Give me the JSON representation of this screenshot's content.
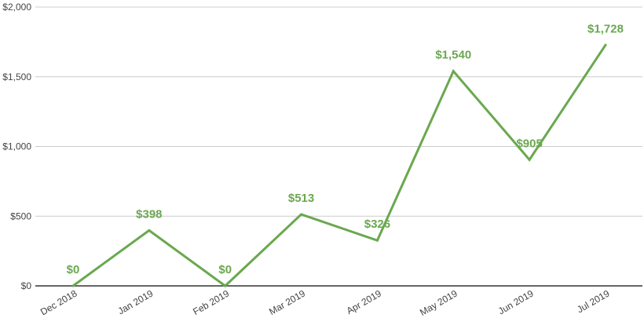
{
  "chart_data": {
    "type": "line",
    "title": "",
    "xlabel": "",
    "ylabel": "",
    "categories": [
      "Dec 2018",
      "Jan 2019",
      "Feb 2019",
      "Mar 2019",
      "Apr 2019",
      "May 2019",
      "Jun 2019",
      "Jul 2019"
    ],
    "series": [
      {
        "values": [
          0,
          398,
          0,
          513,
          326,
          1540,
          905,
          1728
        ],
        "labels": [
          "$0",
          "$398",
          "$0",
          "$513",
          "$326",
          "$1,540",
          "$905",
          "$1,728"
        ],
        "color": "#6aa84f"
      }
    ],
    "ylim": [
      0,
      2000
    ],
    "yticks": [
      0,
      500,
      1000,
      1500,
      2000
    ],
    "ytick_labels": [
      "$0",
      "$500",
      "$1,000",
      "$1,500",
      "$2,000"
    ],
    "grid": true,
    "legend": "none"
  }
}
